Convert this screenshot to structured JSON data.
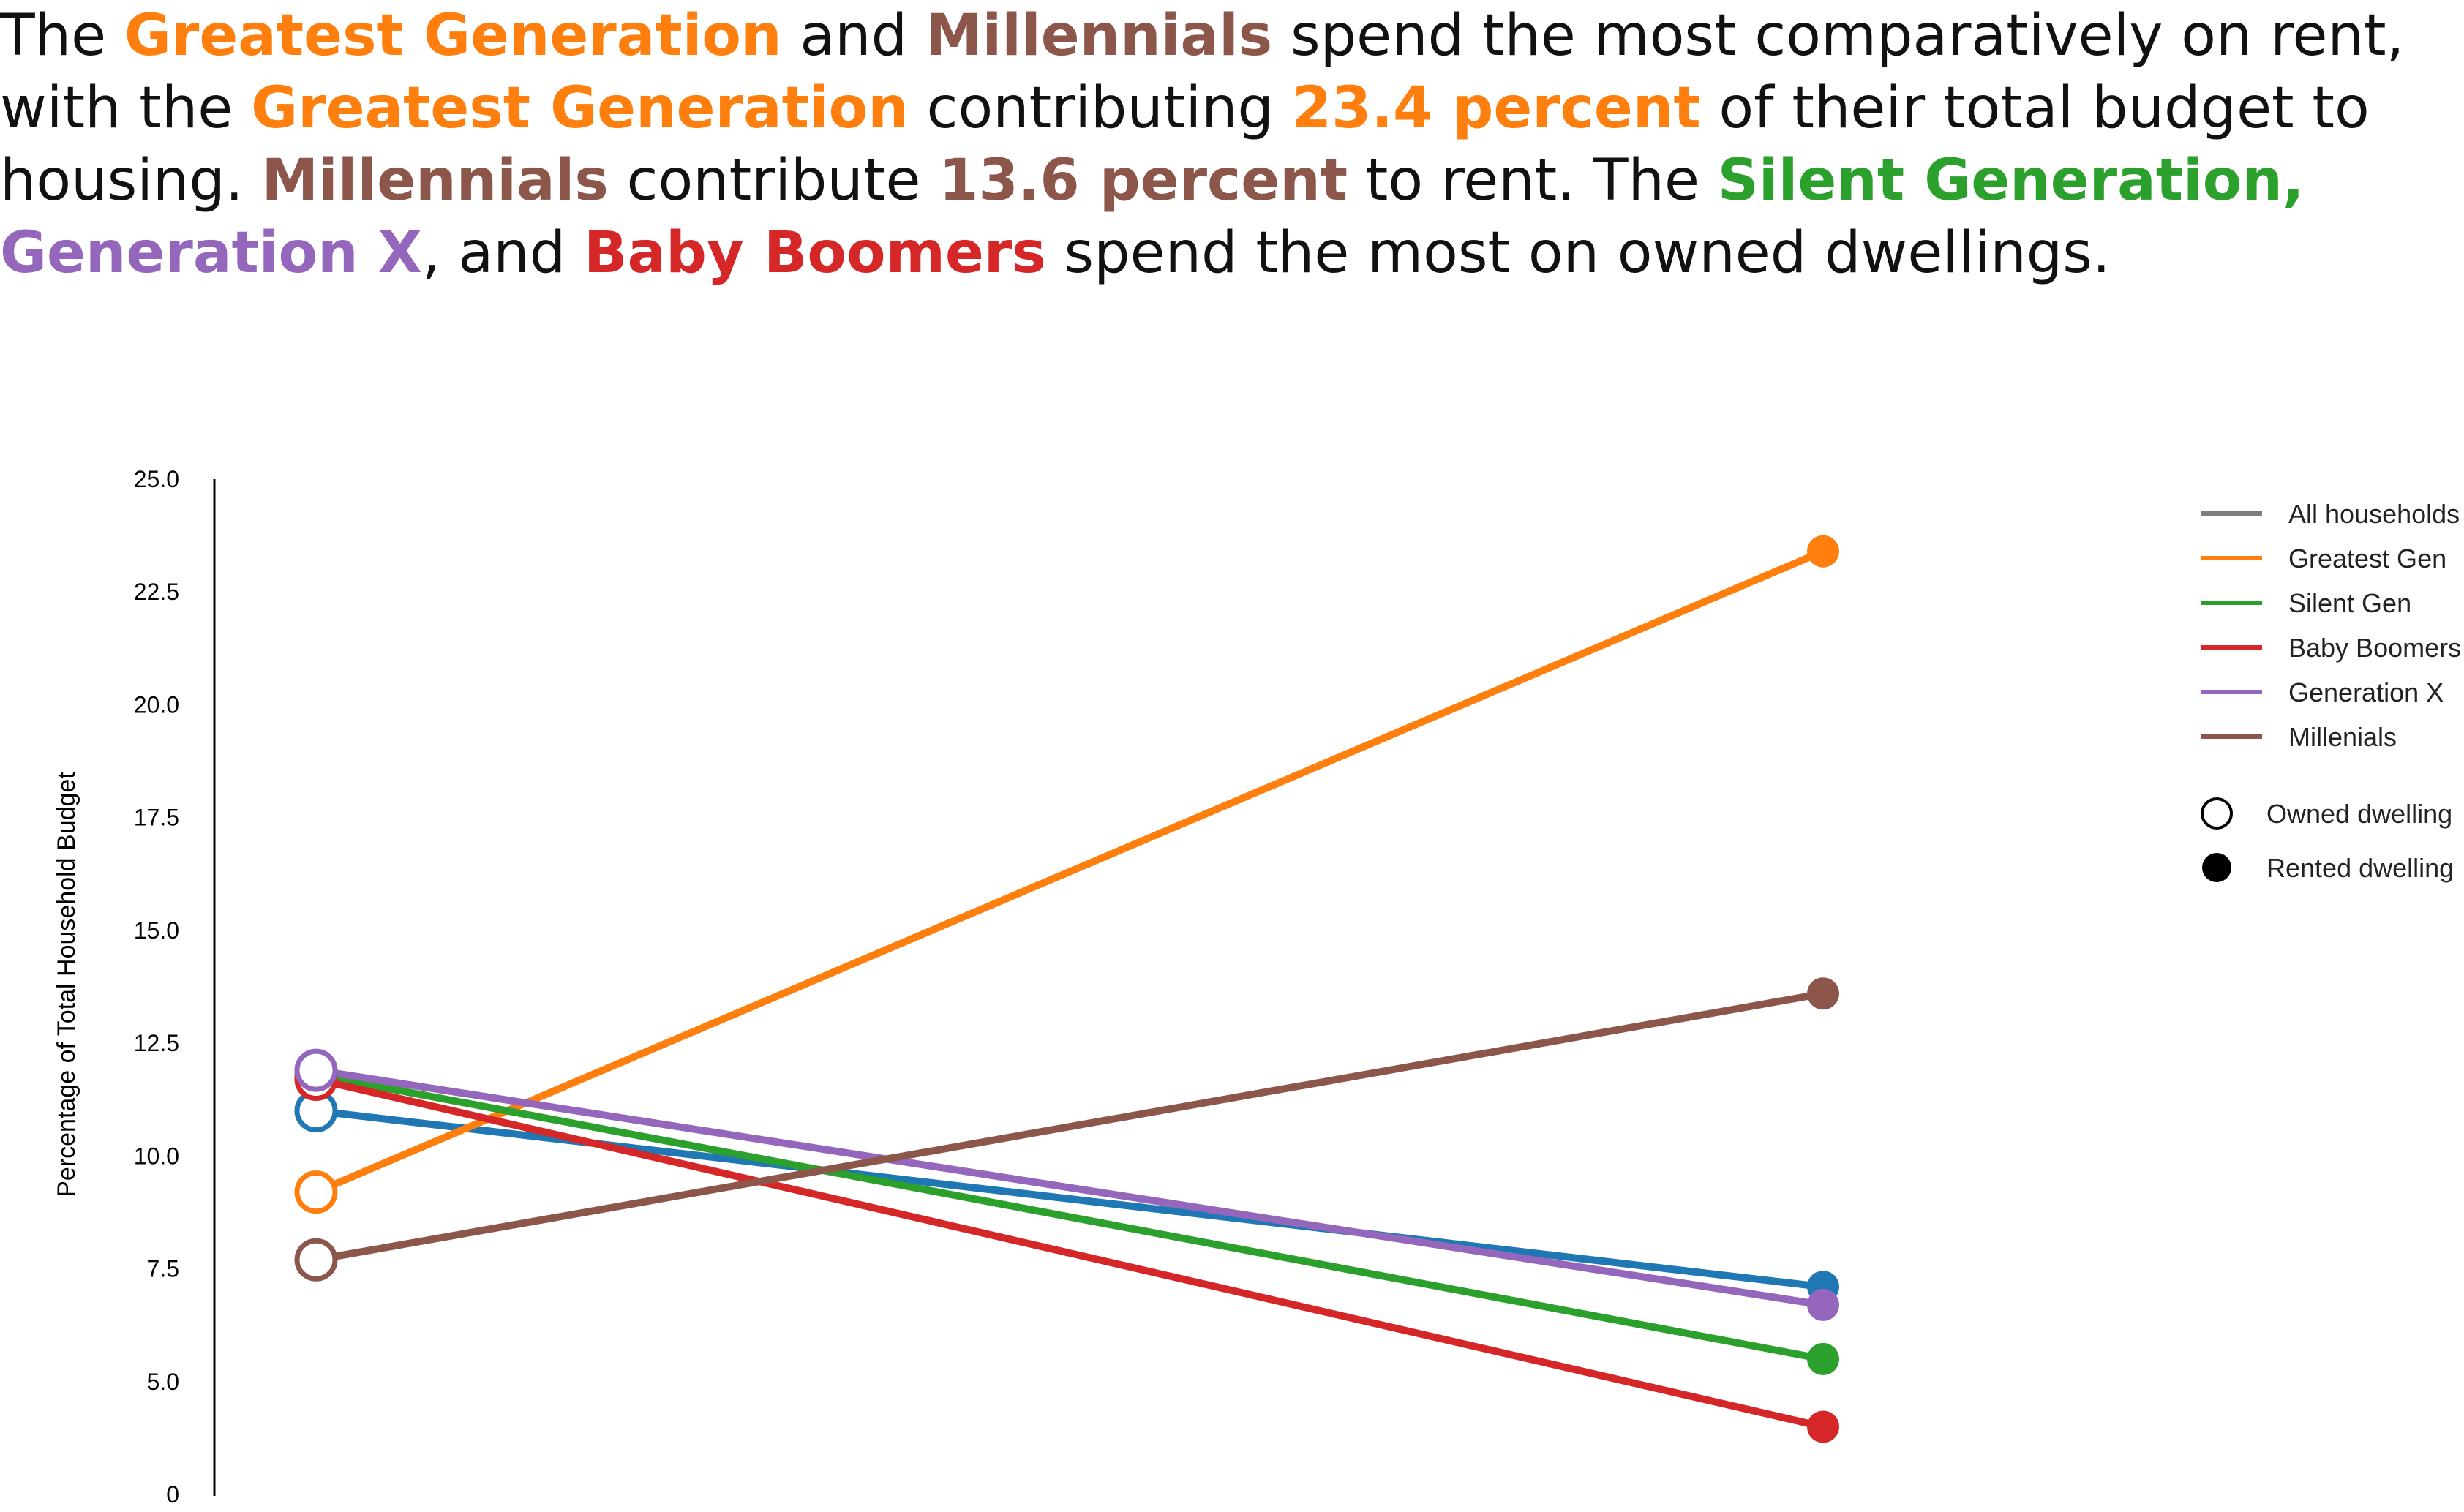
{
  "headline": {
    "segments": [
      {
        "text": "The ",
        "color": null
      },
      {
        "text": "Greatest Generation",
        "color": "#ff7f0e"
      },
      {
        "text": " and ",
        "color": null
      },
      {
        "text": "Millennials",
        "color": "#8c564b"
      },
      {
        "text": " spend the most comparatively on rent,",
        "color": null
      },
      {
        "br": true
      },
      {
        "text": "with the ",
        "color": null
      },
      {
        "text": "Greatest Generation",
        "color": "#ff7f0e"
      },
      {
        "text": " contributing ",
        "color": null
      },
      {
        "text": "23.4 percent",
        "color": "#ff7f0e"
      },
      {
        "text": " of their total budget to",
        "color": null
      },
      {
        "br": true
      },
      {
        "text": "housing. ",
        "color": null
      },
      {
        "text": "Millennials",
        "color": "#8c564b"
      },
      {
        "text": " contribute ",
        "color": null
      },
      {
        "text": "13.6 percent",
        "color": "#8c564b"
      },
      {
        "text": " to rent. The ",
        "color": null
      },
      {
        "text": "Silent Generation,",
        "color": "#2ca02c"
      },
      {
        "br": true
      },
      {
        "text": "Generation X",
        "color": "#9467bd"
      },
      {
        "text": ", and ",
        "color": null
      },
      {
        "text": "Baby Boomers",
        "color": "#d62728"
      },
      {
        "text": " spend the most on owned dwellings.",
        "color": null
      }
    ]
  },
  "chart_data": {
    "type": "line",
    "title": "",
    "xlabel": "",
    "ylabel": "Percentage of Total Household Budget",
    "categories": [
      "Owned dwelling",
      "Rented dwelling"
    ],
    "y_ticks": [
      "25.0",
      "22.5",
      "20.0",
      "17.5",
      "15.0",
      "12.5",
      "10.0",
      "7.5",
      "5.0",
      "0"
    ],
    "series": [
      {
        "name": "All households",
        "color": "#1f77b4",
        "legend_color": "#7f7f7f",
        "values": [
          11.0,
          7.1
        ]
      },
      {
        "name": "Greatest Gen",
        "color": "#ff7f0e",
        "legend_color": "#ff7f0e",
        "values": [
          9.2,
          23.4
        ]
      },
      {
        "name": "Silent Gen",
        "color": "#2ca02c",
        "legend_color": "#2ca02c",
        "values": [
          11.8,
          5.5
        ]
      },
      {
        "name": "Baby Boomers",
        "color": "#d62728",
        "legend_color": "#d62728",
        "values": [
          11.7,
          4.0
        ]
      },
      {
        "name": "Generation X",
        "color": "#9467bd",
        "legend_color": "#9467bd",
        "values": [
          11.9,
          6.7
        ]
      },
      {
        "name": "Millenials",
        "color": "#8c564b",
        "legend_color": "#8c564b",
        "values": [
          7.7,
          13.6
        ]
      }
    ],
    "marker_legend": [
      {
        "label": "Owned dwelling",
        "style": "hollow"
      },
      {
        "label": "Rented dwelling",
        "style": "filled"
      }
    ],
    "legend_position": "top-right",
    "grid": false
  }
}
